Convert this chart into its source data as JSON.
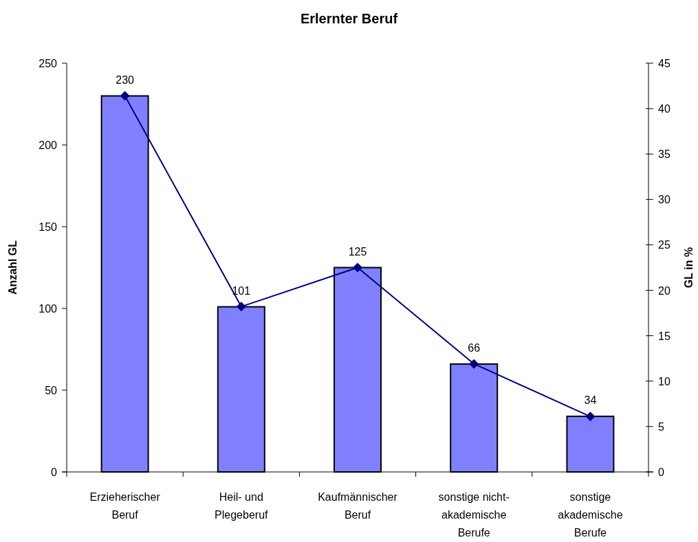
{
  "chart_data": {
    "type": "bar",
    "title": "Erlernter Beruf",
    "ylabel": "Anzahl GL",
    "y2label": "GL in %",
    "categories": [
      "Erzieherischer Beruf",
      "Heil- und Plegeberuf",
      "Kaufmännischer Beruf",
      "sonstige nicht-akademische Berufe",
      "sonstige akademische Berufe"
    ],
    "series": [
      {
        "color": "#8080ff",
        "values": [
          230,
          101,
          125,
          66,
          34
        ],
        "value_labels": [
          "230",
          "101",
          "125",
          "66",
          "34"
        ]
      },
      {
        "type": "line",
        "axis": "y2",
        "color": "#000080",
        "marker": "diamond",
        "values": [
          41.4,
          18.2,
          22.5,
          11.9,
          6.1
        ]
      }
    ],
    "ylim": [
      0,
      250
    ],
    "yticks": [
      0,
      50,
      100,
      150,
      200,
      250
    ],
    "y2lim": [
      0,
      45
    ],
    "y2ticks": [
      0,
      5,
      10,
      15,
      20,
      25,
      30,
      35,
      40,
      45
    ],
    "grid": false
  }
}
